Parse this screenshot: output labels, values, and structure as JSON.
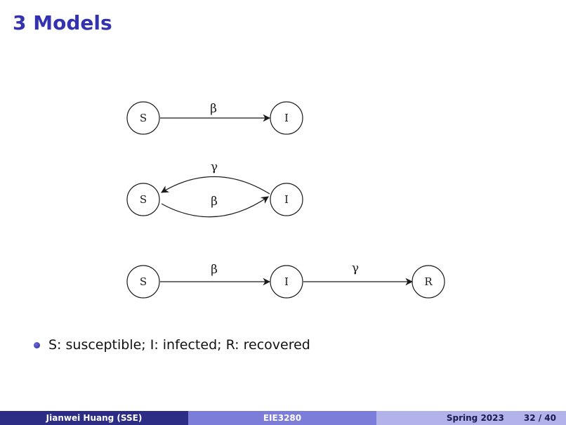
{
  "slide": {
    "title": "3 Models"
  },
  "diagram": {
    "row1": {
      "node_s": "S",
      "node_i": "I",
      "edge_si": "β"
    },
    "row2": {
      "node_s": "S",
      "node_i": "I",
      "edge_is": "γ",
      "edge_si": "β"
    },
    "row3": {
      "node_s": "S",
      "node_i": "I",
      "node_r": "R",
      "edge_si": "β",
      "edge_ir": "γ"
    }
  },
  "bullets": [
    "S: susceptible; I: infected; R: recovered"
  ],
  "footer": {
    "author": "Jianwei Huang  (SSE)",
    "course": "EIE3280",
    "term": "Spring 2023",
    "page": "32 / 40"
  },
  "colors": {
    "title": "#3333b2",
    "footer_dark": "#2d2d86",
    "footer_mid": "#7c7cd9",
    "footer_light": "#b3b3ec"
  }
}
